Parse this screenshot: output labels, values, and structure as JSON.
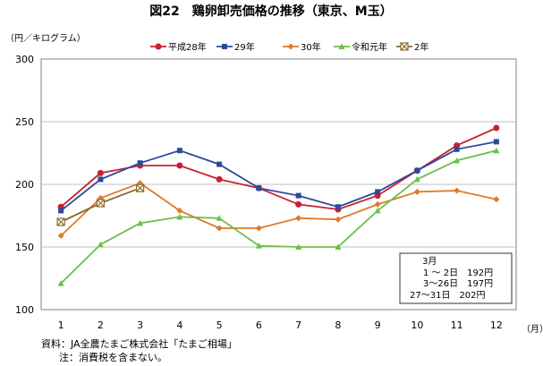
{
  "figure": {
    "title": "図22　鶏卵卸売価格の推移（東京、M玉）",
    "unit": "（円／キログラム）",
    "x_unit": "（月）"
  },
  "chart_data": {
    "type": "line",
    "categories": [
      "1",
      "2",
      "3",
      "4",
      "5",
      "6",
      "7",
      "8",
      "9",
      "10",
      "11",
      "12"
    ],
    "ylim": [
      100,
      300
    ],
    "yticks": [
      100,
      150,
      200,
      250,
      300
    ],
    "grid": true,
    "legend_position": "top",
    "series": [
      {
        "name": "平成28年",
        "color": "#c8202f",
        "marker": "circle",
        "values": [
          182,
          209,
          215,
          215,
          204,
          197,
          184,
          180,
          191,
          211,
          231,
          245
        ]
      },
      {
        "name": "29年",
        "color": "#2c4a9a",
        "marker": "square",
        "values": [
          179,
          204,
          217,
          227,
          216,
          197,
          191,
          182,
          194,
          211,
          228,
          234
        ]
      },
      {
        "name": "30年",
        "color": "#e07a2a",
        "marker": "diamond",
        "values": [
          159,
          189,
          201,
          179,
          165,
          165,
          173,
          172,
          184,
          194,
          195,
          188
        ]
      },
      {
        "name": "令和元年",
        "color": "#6cbf4a",
        "marker": "triangle",
        "values": [
          121,
          152,
          169,
          174,
          173,
          151,
          150,
          150,
          179,
          204,
          219,
          227
        ]
      },
      {
        "name": "2年",
        "color": "#8a6a2a",
        "marker": "xsquare",
        "values": [
          170,
          185,
          197,
          null,
          null,
          null,
          null,
          null,
          null,
          null,
          null,
          null
        ]
      }
    ]
  },
  "annotation": {
    "lines": [
      "3月",
      "　1 ～ 2日　192円",
      "　3～26日　197円",
      "27～31日　202円"
    ]
  },
  "footnotes": {
    "source": "資料：JA全農たまご株式会社「たまご相場」",
    "note": "注：消費税を含まない。"
  }
}
